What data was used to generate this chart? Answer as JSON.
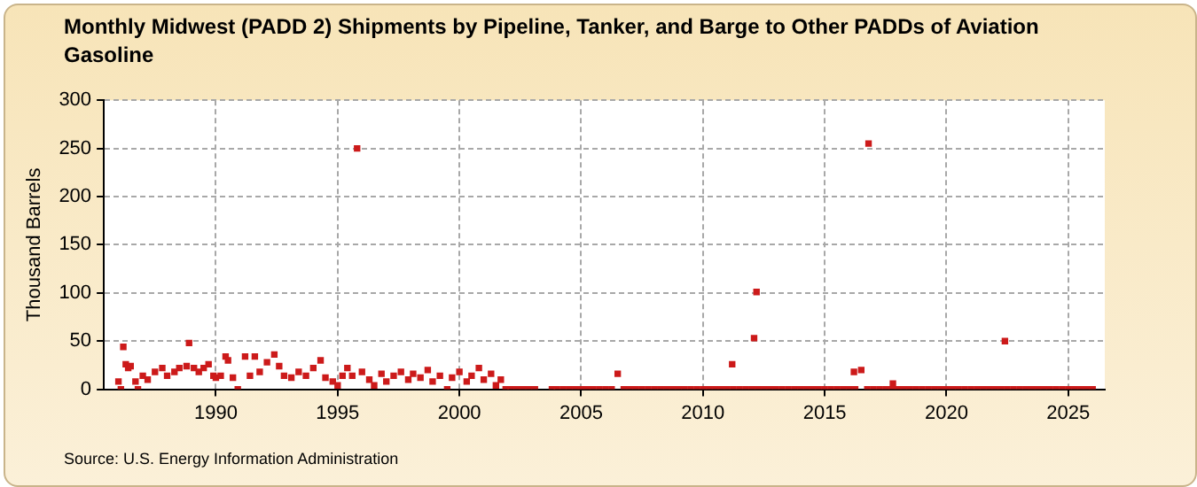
{
  "chart_data": {
    "type": "scatter",
    "title": "Monthly Midwest (PADD 2) Shipments by Pipeline, Tanker, and Barge to Other PADDs of Aviation Gasoline",
    "ylabel": "Thousand Barrels",
    "annotations": [
      "Source: U.S. Energy Information Administration"
    ],
    "xlim": [
      1985.4,
      2026.5
    ],
    "xticks": [
      1990,
      1995,
      2000,
      2005,
      2010,
      2015,
      2020,
      2025
    ],
    "ylim": [
      0,
      300
    ],
    "yticks": [
      0,
      50,
      100,
      150,
      200,
      250,
      300
    ],
    "grid": true,
    "legend": false,
    "marker": "square",
    "series": [
      {
        "color": "#cc1a1a",
        "x": [
          1986.0,
          1986.1,
          1986.2,
          1986.3,
          1986.4,
          1986.5,
          1986.7,
          1986.8,
          1987.0,
          1987.2,
          1987.5,
          1987.8,
          1988.0,
          1988.3,
          1988.5,
          1988.8,
          1988.9,
          1989.1,
          1989.3,
          1989.5,
          1989.7,
          1989.9,
          1990.0,
          1990.2,
          1990.4,
          1990.5,
          1990.7,
          1990.9,
          1991.2,
          1991.4,
          1991.6,
          1991.8,
          1992.1,
          1992.4,
          1992.6,
          1992.8,
          1993.1,
          1993.4,
          1993.7,
          1994.0,
          1994.3,
          1994.5,
          1994.8,
          1995.0,
          1995.2,
          1995.4,
          1995.6,
          1995.8,
          1996.0,
          1996.3,
          1996.5,
          1996.8,
          1997.0,
          1997.3,
          1997.6,
          1997.9,
          1998.1,
          1998.4,
          1998.7,
          1998.9,
          1999.2,
          1999.5,
          1999.7,
          2000.0,
          2000.3,
          2000.5,
          2000.8,
          2001.0,
          2001.3,
          2001.5,
          2001.7,
          2006.5,
          2011.2,
          2012.1,
          2012.2,
          2016.2,
          2016.5,
          2016.8,
          2017.8,
          2022.4
        ],
        "values": [
          8,
          0,
          44,
          26,
          22,
          24,
          8,
          0,
          14,
          10,
          18,
          22,
          14,
          18,
          22,
          24,
          48,
          22,
          18,
          22,
          26,
          14,
          12,
          14,
          34,
          30,
          12,
          0,
          34,
          14,
          34,
          18,
          28,
          36,
          24,
          14,
          12,
          18,
          14,
          22,
          30,
          12,
          8,
          4,
          14,
          22,
          14,
          250,
          18,
          10,
          4,
          16,
          8,
          14,
          18,
          10,
          16,
          12,
          20,
          8,
          14,
          0,
          12,
          18,
          8,
          14,
          22,
          10,
          16,
          4,
          10,
          16,
          26,
          53,
          101,
          18,
          20,
          255,
          6,
          50
        ]
      },
      {
        "color": "#cc1a1a",
        "x": [
          2001.9,
          2002.1,
          2002.35,
          2002.6,
          2002.85,
          2003.1,
          2003.8,
          2004,
          2004.25,
          2004.5,
          2004.75,
          2005,
          2005.25,
          2005.5,
          2005.75,
          2006,
          2006.25,
          2006.75,
          2007,
          2007.25,
          2007.5,
          2007.75,
          2008,
          2008.25,
          2008.5,
          2008.75,
          2009,
          2009.25,
          2009.5,
          2009.75,
          2010,
          2010.25,
          2010.5,
          2010.75,
          2011,
          2011.25,
          2011.5,
          2011.75,
          2012,
          2012.25,
          2012.5,
          2012.75,
          2013,
          2013.25,
          2013.5,
          2013.75,
          2014,
          2014.25,
          2014.5,
          2014.75,
          2015,
          2015.25,
          2015.5,
          2015.75,
          2016,
          2016.25,
          2016.75,
          2017,
          2017.25,
          2017.5,
          2017.75,
          2018,
          2018.25,
          2018.5,
          2018.75,
          2019,
          2019.25,
          2019.5,
          2019.75,
          2020,
          2020.25,
          2020.5,
          2020.75,
          2021,
          2021.25,
          2021.5,
          2021.75,
          2022,
          2022.25,
          2022.5,
          2022.75,
          2023,
          2023.25,
          2023.5,
          2023.75,
          2024,
          2024.25,
          2024.5,
          2024.75,
          2025,
          2025.25,
          2025.5,
          2025.75,
          2026
        ],
        "values": [
          0,
          0,
          0,
          0,
          0,
          0,
          0,
          0,
          0,
          0,
          0,
          0,
          0,
          0,
          0,
          0,
          0,
          0,
          0,
          0,
          0,
          0,
          0,
          0,
          0,
          0,
          0,
          0,
          0,
          0,
          0,
          0,
          0,
          0,
          0,
          0,
          0,
          0,
          0,
          0,
          0,
          0,
          0,
          0,
          0,
          0,
          0,
          0,
          0,
          0,
          0,
          0,
          0,
          0,
          0,
          0,
          0,
          0,
          0,
          0,
          0,
          0,
          0,
          0,
          0,
          0,
          0,
          0,
          0,
          0,
          0,
          0,
          0,
          0,
          0,
          0,
          0,
          0,
          0,
          0,
          0,
          0,
          0,
          0,
          0,
          0,
          0,
          0,
          0,
          0,
          0,
          0,
          0,
          0
        ]
      }
    ]
  }
}
